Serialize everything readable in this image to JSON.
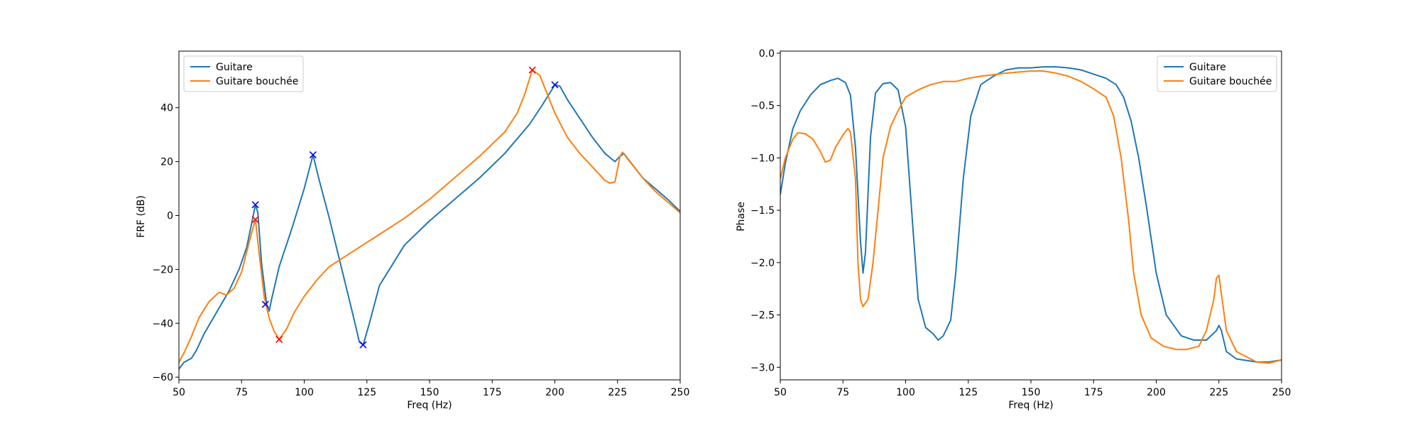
{
  "chart_data": [
    {
      "type": "line",
      "title": "",
      "xlabel": "Freq (Hz)",
      "ylabel": "FRF (dB)",
      "xlim": [
        50,
        250
      ],
      "ylim": [
        -61,
        61
      ],
      "xticks": [
        50,
        75,
        100,
        125,
        150,
        175,
        200,
        225,
        250
      ],
      "yticks": [
        -60,
        -40,
        -20,
        0,
        20,
        40
      ],
      "grid": false,
      "legend_position": "upper left",
      "series": [
        {
          "name": "Guitare",
          "color": "#1f77b4",
          "points": [
            [
              50,
              -57
            ],
            [
              52,
              -54.5
            ],
            [
              55,
              -53
            ],
            [
              57,
              -50
            ],
            [
              60,
              -44
            ],
            [
              65,
              -36
            ],
            [
              70,
              -28
            ],
            [
              74,
              -20
            ],
            [
              77,
              -12
            ],
            [
              79,
              -3
            ],
            [
              80.5,
              4
            ],
            [
              81.5,
              1
            ],
            [
              83,
              -18
            ],
            [
              85,
              -33
            ],
            [
              86,
              -35.5
            ],
            [
              87,
              -31
            ],
            [
              90,
              -19
            ],
            [
              95,
              -5
            ],
            [
              100,
              10
            ],
            [
              103.5,
              22.5
            ],
            [
              106,
              13
            ],
            [
              110,
              -1
            ],
            [
              115,
              -20
            ],
            [
              120,
              -39
            ],
            [
              122,
              -47
            ],
            [
              123.5,
              -48
            ],
            [
              126,
              -40
            ],
            [
              130,
              -26
            ],
            [
              140,
              -11
            ],
            [
              150,
              -2
            ],
            [
              160,
              6
            ],
            [
              170,
              14
            ],
            [
              180,
              23
            ],
            [
              190,
              34
            ],
            [
              195,
              41
            ],
            [
              199,
              47
            ],
            [
              200,
              48.5
            ],
            [
              202,
              48
            ],
            [
              205,
              43
            ],
            [
              210,
              36
            ],
            [
              215,
              29
            ],
            [
              220,
              23
            ],
            [
              224,
              20
            ],
            [
              226,
              22
            ],
            [
              227.5,
              23
            ],
            [
              230,
              20
            ],
            [
              235,
              14
            ],
            [
              240,
              10
            ],
            [
              245,
              6
            ],
            [
              250,
              1.5
            ]
          ],
          "markers": [
            [
              80.5,
              4
            ],
            [
              84.5,
              -33
            ],
            [
              103.5,
              22.5
            ],
            [
              123.5,
              -48
            ],
            [
              200,
              48.5
            ]
          ]
        },
        {
          "name": "Guitare bouchée",
          "color": "#ff7f0e",
          "points": [
            [
              50,
              -54.5
            ],
            [
              52,
              -51
            ],
            [
              55,
              -45
            ],
            [
              58,
              -38
            ],
            [
              62,
              -32
            ],
            [
              66,
              -28.5
            ],
            [
              69,
              -29.5
            ],
            [
              72,
              -27
            ],
            [
              75,
              -21
            ],
            [
              78,
              -10
            ],
            [
              80.5,
              -1.5
            ],
            [
              82,
              -14
            ],
            [
              84,
              -30
            ],
            [
              86,
              -38
            ],
            [
              88,
              -43
            ],
            [
              90,
              -46
            ],
            [
              93,
              -42
            ],
            [
              96,
              -36
            ],
            [
              100,
              -30
            ],
            [
              105,
              -24
            ],
            [
              110,
              -19
            ],
            [
              120,
              -13
            ],
            [
              130,
              -7
            ],
            [
              140,
              -1
            ],
            [
              150,
              6
            ],
            [
              160,
              14
            ],
            [
              170,
              22
            ],
            [
              180,
              31
            ],
            [
              185,
              38
            ],
            [
              188,
              45
            ],
            [
              191,
              54
            ],
            [
              194,
              52
            ],
            [
              197,
              45
            ],
            [
              200,
              38
            ],
            [
              205,
              29
            ],
            [
              210,
              23
            ],
            [
              215,
              18
            ],
            [
              220,
              13
            ],
            [
              222,
              12
            ],
            [
              224,
              12.5
            ],
            [
              226,
              22
            ],
            [
              227,
              23.5
            ],
            [
              229,
              21
            ],
            [
              235,
              14
            ],
            [
              240,
              9
            ],
            [
              245,
              5
            ],
            [
              250,
              1
            ]
          ],
          "markers": [
            [
              80.5,
              -1.5
            ],
            [
              90,
              -46
            ],
            [
              191,
              54
            ]
          ]
        }
      ]
    },
    {
      "type": "line",
      "title": "",
      "xlabel": "Freq (Hz)",
      "ylabel": "Phase",
      "xlim": [
        50,
        250
      ],
      "ylim": [
        -3.12,
        0.02
      ],
      "xticks": [
        50,
        75,
        100,
        125,
        150,
        175,
        200,
        225,
        250
      ],
      "yticks": [
        -3.0,
        -2.5,
        -2.0,
        -1.5,
        -1.0,
        -0.5,
        0.0
      ],
      "grid": false,
      "legend_position": "upper right",
      "series": [
        {
          "name": "Guitare",
          "color": "#1f77b4",
          "points": [
            [
              50,
              -1.35
            ],
            [
              52,
              -1.05
            ],
            [
              55,
              -0.72
            ],
            [
              58,
              -0.55
            ],
            [
              62,
              -0.4
            ],
            [
              66,
              -0.3
            ],
            [
              70,
              -0.26
            ],
            [
              73,
              -0.24
            ],
            [
              76,
              -0.28
            ],
            [
              78,
              -0.4
            ],
            [
              80,
              -0.9
            ],
            [
              82,
              -1.8
            ],
            [
              83,
              -2.1
            ],
            [
              84,
              -1.9
            ],
            [
              86,
              -0.8
            ],
            [
              88,
              -0.38
            ],
            [
              91,
              -0.29
            ],
            [
              94,
              -0.28
            ],
            [
              97,
              -0.35
            ],
            [
              100,
              -0.7
            ],
            [
              103,
              -1.7
            ],
            [
              105,
              -2.35
            ],
            [
              108,
              -2.62
            ],
            [
              111,
              -2.68
            ],
            [
              113,
              -2.74
            ],
            [
              115,
              -2.7
            ],
            [
              118,
              -2.55
            ],
            [
              120,
              -2.1
            ],
            [
              123,
              -1.2
            ],
            [
              126,
              -0.6
            ],
            [
              130,
              -0.3
            ],
            [
              135,
              -0.22
            ],
            [
              140,
              -0.16
            ],
            [
              145,
              -0.14
            ],
            [
              150,
              -0.14
            ],
            [
              155,
              -0.13
            ],
            [
              160,
              -0.13
            ],
            [
              165,
              -0.14
            ],
            [
              170,
              -0.16
            ],
            [
              175,
              -0.2
            ],
            [
              180,
              -0.24
            ],
            [
              184,
              -0.3
            ],
            [
              187,
              -0.42
            ],
            [
              190,
              -0.65
            ],
            [
              193,
              -1.0
            ],
            [
              196,
              -1.45
            ],
            [
              200,
              -2.1
            ],
            [
              204,
              -2.5
            ],
            [
              210,
              -2.7
            ],
            [
              215,
              -2.74
            ],
            [
              220,
              -2.74
            ],
            [
              224,
              -2.65
            ],
            [
              225,
              -2.6
            ],
            [
              226,
              -2.65
            ],
            [
              228,
              -2.85
            ],
            [
              232,
              -2.92
            ],
            [
              240,
              -2.95
            ],
            [
              245,
              -2.95
            ],
            [
              250,
              -2.93
            ]
          ]
        },
        {
          "name": "Guitare bouchée",
          "color": "#ff7f0e",
          "points": [
            [
              50,
              -1.2
            ],
            [
              52,
              -1.0
            ],
            [
              55,
              -0.82
            ],
            [
              57,
              -0.76
            ],
            [
              60,
              -0.77
            ],
            [
              63,
              -0.82
            ],
            [
              66,
              -0.94
            ],
            [
              68,
              -1.04
            ],
            [
              70,
              -1.02
            ],
            [
              72,
              -0.9
            ],
            [
              75,
              -0.78
            ],
            [
              77,
              -0.72
            ],
            [
              78,
              -0.75
            ],
            [
              80,
              -1.2
            ],
            [
              81,
              -2.0
            ],
            [
              82,
              -2.35
            ],
            [
              83,
              -2.42
            ],
            [
              85,
              -2.35
            ],
            [
              87,
              -2.0
            ],
            [
              89,
              -1.5
            ],
            [
              91,
              -1.0
            ],
            [
              94,
              -0.7
            ],
            [
              97,
              -0.55
            ],
            [
              100,
              -0.42
            ],
            [
              105,
              -0.35
            ],
            [
              110,
              -0.3
            ],
            [
              115,
              -0.27
            ],
            [
              120,
              -0.27
            ],
            [
              125,
              -0.24
            ],
            [
              130,
              -0.22
            ],
            [
              140,
              -0.19
            ],
            [
              145,
              -0.18
            ],
            [
              150,
              -0.17
            ],
            [
              155,
              -0.17
            ],
            [
              160,
              -0.19
            ],
            [
              165,
              -0.22
            ],
            [
              170,
              -0.27
            ],
            [
              175,
              -0.34
            ],
            [
              180,
              -0.42
            ],
            [
              183,
              -0.6
            ],
            [
              186,
              -1.0
            ],
            [
              189,
              -1.6
            ],
            [
              191,
              -2.1
            ],
            [
              194,
              -2.5
            ],
            [
              198,
              -2.72
            ],
            [
              203,
              -2.8
            ],
            [
              208,
              -2.83
            ],
            [
              212,
              -2.83
            ],
            [
              217,
              -2.8
            ],
            [
              220,
              -2.65
            ],
            [
              223,
              -2.35
            ],
            [
              224,
              -2.15
            ],
            [
              225,
              -2.12
            ],
            [
              226,
              -2.3
            ],
            [
              228,
              -2.65
            ],
            [
              232,
              -2.85
            ],
            [
              240,
              -2.95
            ],
            [
              245,
              -2.96
            ],
            [
              250,
              -2.93
            ]
          ]
        }
      ]
    }
  ]
}
